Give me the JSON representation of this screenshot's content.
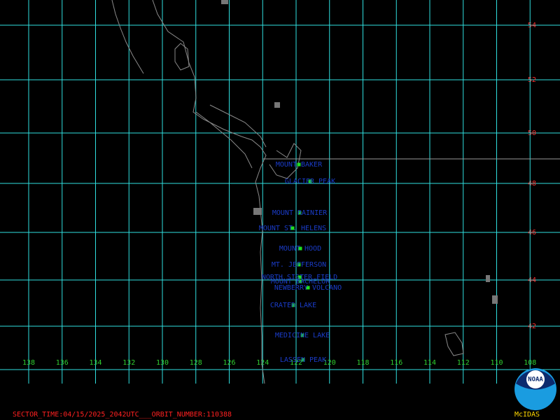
{
  "map": {
    "lat_labels": [
      54,
      52,
      50,
      48,
      46,
      44,
      42
    ],
    "lon_labels": [
      138,
      136,
      134,
      132,
      130,
      128,
      126,
      124,
      122,
      120,
      118,
      116,
      114,
      112,
      110,
      108
    ],
    "volcanoes": [
      "MOUNT BAKER",
      "GLACIER PEAK",
      "MOUNT RAINIER",
      "MOUNT ST. HELENS",
      "MOUNT HOOD",
      "MT. JEFFERSON",
      "NORTH SISTER FIELD",
      "MOUNT BACHELOR",
      "NEWBERRY VOLCANO",
      "CRATER LAKE",
      "MEDICINE LAKE",
      "LASSEN PEAK"
    ]
  },
  "footer": "SECTOR_TIME:04/15/2025_2042UTC___ORBIT_NUMBER:110388",
  "logo": {
    "text": "NOAA",
    "caption": "McIDAS"
  }
}
